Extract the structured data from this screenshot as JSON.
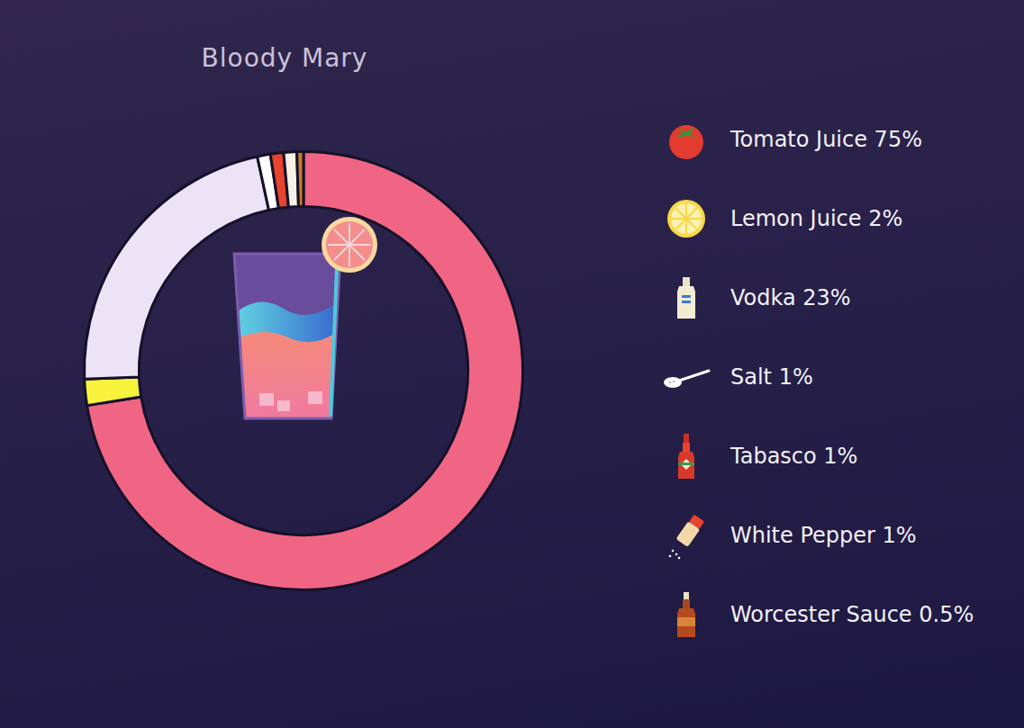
{
  "chart_data": {
    "type": "doughnut",
    "title": "Bloody Mary",
    "categories": [
      "Tomato Juice 75%",
      "Lemon Juice 2%",
      "Vodka 23%",
      "Salt 1%",
      "Tabasco 1%",
      "White Pepper 1%",
      "Worcester Sauce 0.5%"
    ],
    "values": [
      75,
      2,
      23,
      1,
      1,
      1,
      0.5
    ],
    "colors": [
      "#f06584",
      "#f7f23c",
      "#ede3f7",
      "#ffffff",
      "#e8432f",
      "#f6f1e6",
      "#c97b2b"
    ],
    "legend": "right"
  }
}
